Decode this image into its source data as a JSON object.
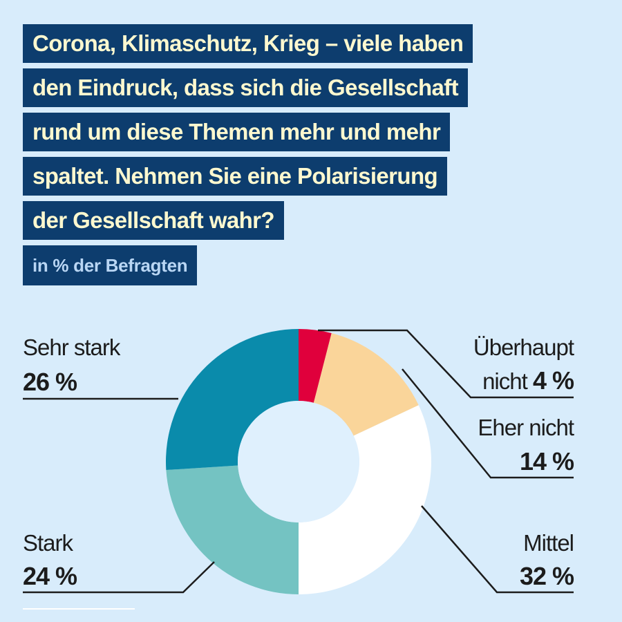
{
  "title_lines": [
    "Corona, Klimaschutz, Krieg – viele haben",
    "den Eindruck, dass sich die Gesellschaft",
    "rund um diese Themen mehr und mehr",
    "spaltet. Nehmen Sie eine Polarisierung",
    "der Gesellschaft wahr?"
  ],
  "subtitle": "in % der Befragten",
  "colors": {
    "title_bg": "#0d3d6e",
    "title_text": "#fdf8cf",
    "subtitle_text": "#b9d6f4",
    "background": "#d8ecfb",
    "donut_hole": "#dff0fd"
  },
  "chart_data": {
    "type": "pie",
    "donut": true,
    "slices": [
      {
        "name": "Überhaupt nicht",
        "value": 4,
        "label": "4 %",
        "color": "#e0003c"
      },
      {
        "name": "Eher nicht",
        "value": 14,
        "label": "14 %",
        "color": "#fad59a"
      },
      {
        "name": "Mittel",
        "value": 32,
        "label": "32 %",
        "color": "#ffffff"
      },
      {
        "name": "Stark",
        "value": 24,
        "label": "24 %",
        "color": "#74c3c2"
      },
      {
        "name": "Sehr stark",
        "value": 26,
        "label": "26 %",
        "color": "#0a8bab"
      }
    ]
  }
}
